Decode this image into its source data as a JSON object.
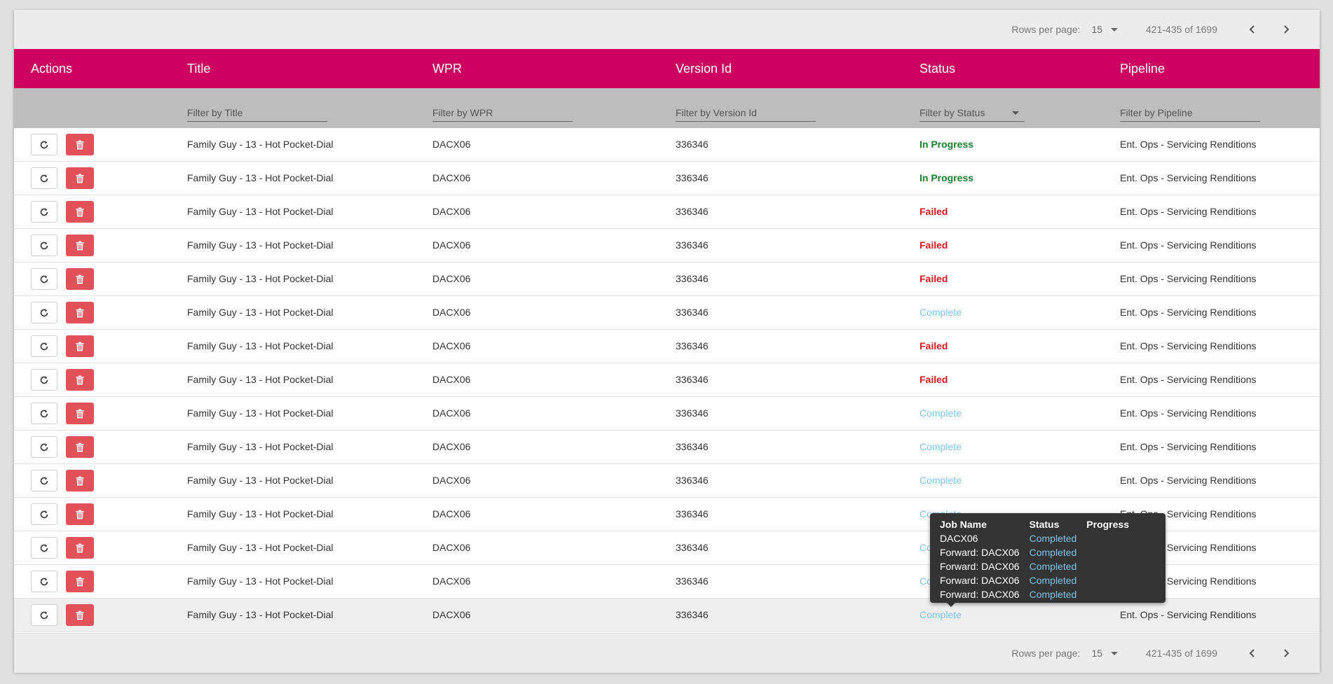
{
  "pager": {
    "rows_per_page_label": "Rows per page:",
    "rows_per_page_value": "15",
    "range": "421-435 of 1699"
  },
  "columns": {
    "actions": "Actions",
    "title": "Title",
    "wpr": "WPR",
    "version_id": "Version Id",
    "status": "Status",
    "pipeline": "Pipeline"
  },
  "filters": {
    "title": "Filter by Title",
    "wpr": "Filter by WPR",
    "version_id": "Filter by Version Id",
    "status": "Filter by Status",
    "pipeline": "Filter by Pipeline"
  },
  "rows": [
    {
      "title": "Family Guy - 13 - Hot Pocket-Dial",
      "wpr": "DACX06",
      "version_id": "336346",
      "status": "In Progress",
      "status_kind": "inprogress",
      "pipeline": "Ent. Ops - Servicing Renditions"
    },
    {
      "title": "Family Guy - 13 - Hot Pocket-Dial",
      "wpr": "DACX06",
      "version_id": "336346",
      "status": "In Progress",
      "status_kind": "inprogress",
      "pipeline": "Ent. Ops - Servicing Renditions"
    },
    {
      "title": "Family Guy - 13 - Hot Pocket-Dial",
      "wpr": "DACX06",
      "version_id": "336346",
      "status": "Failed",
      "status_kind": "failed",
      "pipeline": "Ent. Ops - Servicing Renditions"
    },
    {
      "title": "Family Guy - 13 - Hot Pocket-Dial",
      "wpr": "DACX06",
      "version_id": "336346",
      "status": "Failed",
      "status_kind": "failed",
      "pipeline": "Ent. Ops - Servicing Renditions"
    },
    {
      "title": "Family Guy - 13 - Hot Pocket-Dial",
      "wpr": "DACX06",
      "version_id": "336346",
      "status": "Failed",
      "status_kind": "failed",
      "pipeline": "Ent. Ops - Servicing Renditions"
    },
    {
      "title": "Family Guy - 13 - Hot Pocket-Dial",
      "wpr": "DACX06",
      "version_id": "336346",
      "status": "Complete",
      "status_kind": "complete",
      "pipeline": "Ent. Ops - Servicing Renditions"
    },
    {
      "title": "Family Guy - 13 - Hot Pocket-Dial",
      "wpr": "DACX06",
      "version_id": "336346",
      "status": "Failed",
      "status_kind": "failed",
      "pipeline": "Ent. Ops - Servicing Renditions"
    },
    {
      "title": "Family Guy - 13 - Hot Pocket-Dial",
      "wpr": "DACX06",
      "version_id": "336346",
      "status": "Failed",
      "status_kind": "failed",
      "pipeline": "Ent. Ops - Servicing Renditions"
    },
    {
      "title": "Family Guy - 13 - Hot Pocket-Dial",
      "wpr": "DACX06",
      "version_id": "336346",
      "status": "Complete",
      "status_kind": "complete",
      "pipeline": "Ent. Ops - Servicing Renditions"
    },
    {
      "title": "Family Guy - 13 - Hot Pocket-Dial",
      "wpr": "DACX06",
      "version_id": "336346",
      "status": "Complete",
      "status_kind": "complete",
      "pipeline": "Ent. Ops - Servicing Renditions"
    },
    {
      "title": "Family Guy - 13 - Hot Pocket-Dial",
      "wpr": "DACX06",
      "version_id": "336346",
      "status": "Complete",
      "status_kind": "complete",
      "pipeline": "Ent. Ops - Servicing Renditions"
    },
    {
      "title": "Family Guy - 13 - Hot Pocket-Dial",
      "wpr": "DACX06",
      "version_id": "336346",
      "status": "Complete",
      "status_kind": "complete",
      "pipeline": "Ent. Ops - Servicing Renditions"
    },
    {
      "title": "Family Guy - 13 - Hot Pocket-Dial",
      "wpr": "DACX06",
      "version_id": "336346",
      "status": "Complete",
      "status_kind": "complete",
      "pipeline": "Ent. Ops - Servicing Renditions"
    },
    {
      "title": "Family Guy - 13 - Hot Pocket-Dial",
      "wpr": "DACX06",
      "version_id": "336346",
      "status": "Complete",
      "status_kind": "complete",
      "pipeline": "Ent. Ops - Servicing Renditions"
    },
    {
      "title": "Family Guy - 13 - Hot Pocket-Dial",
      "wpr": "DACX06",
      "version_id": "336346",
      "status": "Complete",
      "status_kind": "complete",
      "pipeline": "Ent. Ops - Servicing Renditions"
    }
  ],
  "tooltip": {
    "headers": [
      "Job Name",
      "Status",
      "Progress"
    ],
    "jobs": [
      {
        "name": "DACX06",
        "status": "Completed"
      },
      {
        "name": "Forward: DACX06",
        "status": "Completed"
      },
      {
        "name": "Forward: DACX06",
        "status": "Completed"
      },
      {
        "name": "Forward: DACX06",
        "status": "Completed"
      },
      {
        "name": "Forward: DACX06",
        "status": "Completed"
      }
    ]
  },
  "colors": {
    "header_bg": "#cc005e",
    "delete_button": "#e05257",
    "status_in_progress": "#1a7f2e",
    "status_failed": "#e0181f",
    "status_complete": "#7dc4e8"
  },
  "icons": {
    "refresh": "refresh-icon",
    "delete": "trash-icon",
    "prev": "chevron-left-icon",
    "next": "chevron-right-icon",
    "dropdown": "caret-down-icon"
  }
}
